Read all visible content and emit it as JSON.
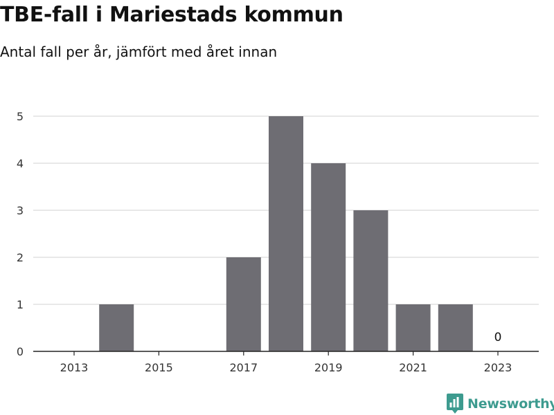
{
  "header": {
    "title": "TBE-fall i Mariestads kommun",
    "subtitle": "Antal fall per år, jämfört med året innan"
  },
  "brand": {
    "name": "Newsworthy",
    "icon": "newsworthy-chart-icon",
    "color": "#3d9b8f"
  },
  "colors": {
    "bar": "#6e6d73",
    "grid": "#d9d9d9",
    "axis": "#222222",
    "text": "#333333"
  },
  "chart_data": {
    "type": "bar",
    "title": "TBE-fall i Mariestads kommun",
    "subtitle": "Antal fall per år, jämfört med året innan",
    "categories": [
      "2013",
      "2014",
      "2015",
      "2016",
      "2017",
      "2018",
      "2019",
      "2020",
      "2021",
      "2022",
      "2023"
    ],
    "values": [
      0,
      1,
      0,
      0,
      2,
      5,
      4,
      3,
      1,
      1,
      0
    ],
    "x_tick_labels": [
      "2013",
      "2015",
      "2017",
      "2019",
      "2021",
      "2023"
    ],
    "y_ticks": [
      0,
      1,
      2,
      3,
      4,
      5
    ],
    "ylim": [
      0,
      5
    ],
    "grid": true,
    "legend": "none",
    "annotations": [
      {
        "category": "2023",
        "text": "0"
      }
    ]
  }
}
